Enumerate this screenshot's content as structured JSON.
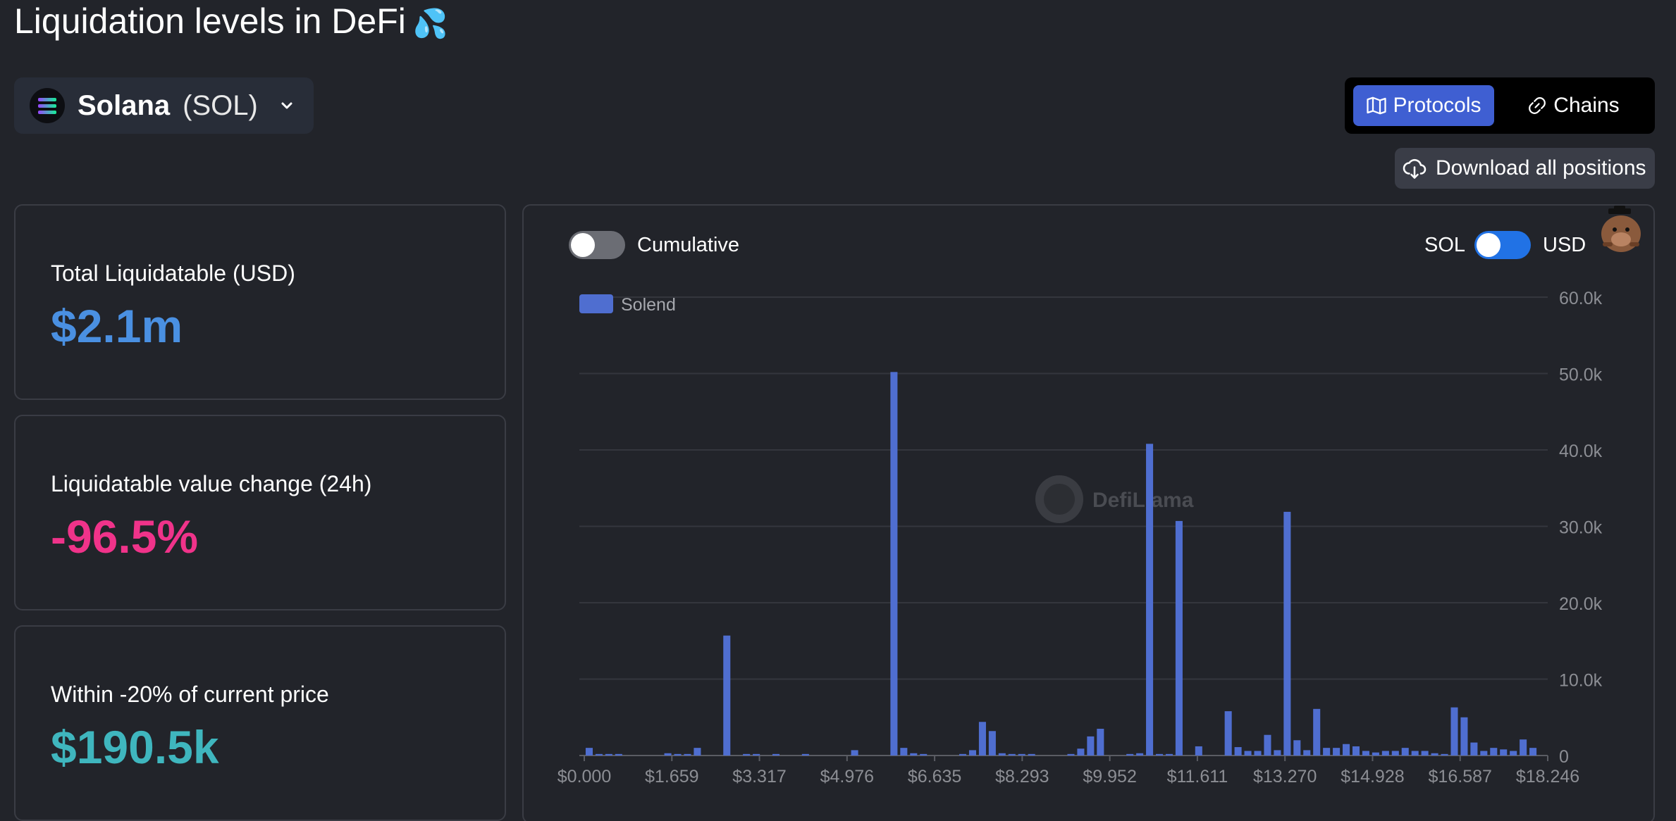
{
  "page": {
    "title": "Liquidation levels in DeFi",
    "title_emoji": "💦"
  },
  "asset": {
    "name": "Solana",
    "symbol": "(SOL)",
    "icon": "solana-logo-icon"
  },
  "view_toggle": {
    "protocols_label": "Protocols",
    "chains_label": "Chains",
    "active": "Protocols"
  },
  "download": {
    "label": "Download all positions"
  },
  "stats": [
    {
      "label": "Total Liquidatable (USD)",
      "value": "$2.1m",
      "color": "#4a90e2"
    },
    {
      "label": "Liquidatable value change (24h)",
      "value": "-96.5%",
      "color": "#f0338a"
    },
    {
      "label": "Within -20% of current price",
      "value": "$190.5k",
      "color": "#3fb6be"
    }
  ],
  "controls": {
    "cumulative_label": "Cumulative",
    "cumulative_on": false,
    "unit_left": "SOL",
    "unit_right": "USD",
    "unit_selected": "USD"
  },
  "colors": {
    "bar": "#4f6ed0",
    "accent": "#3f5fd2",
    "toggle_on": "#2172e5"
  },
  "watermark": "DefiLlama",
  "chart_data": {
    "type": "bar",
    "legend": [
      {
        "name": "Solend",
        "color": "#4f6ed0"
      }
    ],
    "grid": true,
    "ylim": [
      0,
      60000
    ],
    "y_ticks": [
      "0",
      "10.0k",
      "20.0k",
      "30.0k",
      "40.0k",
      "50.0k",
      "60.0k"
    ],
    "x_ticks": [
      "$0.000",
      "$1.659",
      "$3.317",
      "$4.976",
      "$6.635",
      "$8.293",
      "$9.952",
      "$11.611",
      "$13.270",
      "$14.928",
      "$16.587",
      "$18.246"
    ],
    "bin_width": 0.1843,
    "x_start": 0,
    "series": [
      {
        "name": "Solend",
        "values": [
          1000,
          200,
          200,
          200,
          0,
          0,
          0,
          0,
          300,
          200,
          200,
          1000,
          0,
          0,
          15700,
          0,
          200,
          200,
          0,
          200,
          0,
          0,
          200,
          0,
          0,
          0,
          0,
          700,
          0,
          0,
          0,
          50200,
          1000,
          300,
          200,
          0,
          0,
          0,
          200,
          700,
          4400,
          3200,
          300,
          200,
          200,
          200,
          0,
          0,
          0,
          200,
          900,
          2500,
          3500,
          0,
          0,
          200,
          300,
          40800,
          200,
          200,
          30700,
          0,
          1200,
          0,
          0,
          5800,
          1100,
          600,
          600,
          2700,
          700,
          31900,
          2000,
          700,
          6100,
          1000,
          1000,
          1500,
          1200,
          600,
          400,
          600,
          600,
          1000,
          600,
          600,
          300,
          200,
          6300,
          5000,
          1700,
          600,
          1000,
          800,
          600,
          2100,
          1000,
          0
        ]
      }
    ]
  }
}
